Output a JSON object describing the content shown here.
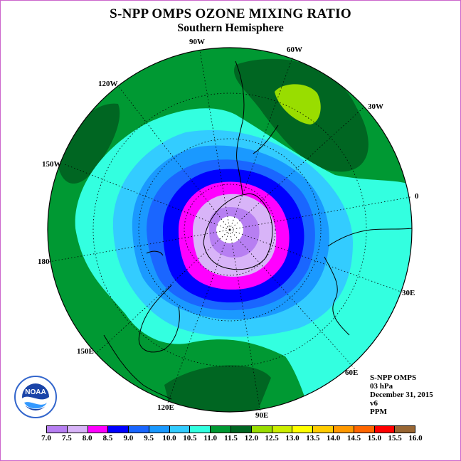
{
  "title": "S-NPP OMPS OZONE MIXING RATIO",
  "subtitle": "Southern Hemisphere",
  "longitude_labels": [
    "90W",
    "60W",
    "120W",
    "30W",
    "150W",
    "0",
    "180",
    "30E",
    "150E",
    "60E",
    "120E",
    "90E"
  ],
  "info": {
    "instrument": "S-NPP OMPS",
    "pressure": "03 hPa",
    "date": "December 31, 2015",
    "version": "v6",
    "units": "PPM"
  },
  "colorbar": {
    "ticks": [
      "7.0",
      "7.5",
      "8.0",
      "8.5",
      "9.0",
      "9.5",
      "10.0",
      "10.5",
      "11.0",
      "11.5",
      "12.0",
      "12.5",
      "13.0",
      "13.5",
      "14.0",
      "14.5",
      "15.0",
      "15.5",
      "16.0"
    ],
    "colors": [
      "#b77ff2",
      "#d8b4f8",
      "#ff00ff",
      "#0000ff",
      "#1a66ff",
      "#1a99ff",
      "#33ccff",
      "#33ffe0",
      "#009933",
      "#006622",
      "#99dd00",
      "#ccee00",
      "#ffff00",
      "#ffcc00",
      "#ff9900",
      "#ff6600",
      "#ff0000",
      "#996633"
    ]
  },
  "logo": {
    "text": "NOAA"
  },
  "map": {
    "projection": "south-polar-stereographic",
    "ring_latitudes": [
      -75,
      -60,
      -45,
      -30
    ]
  }
}
